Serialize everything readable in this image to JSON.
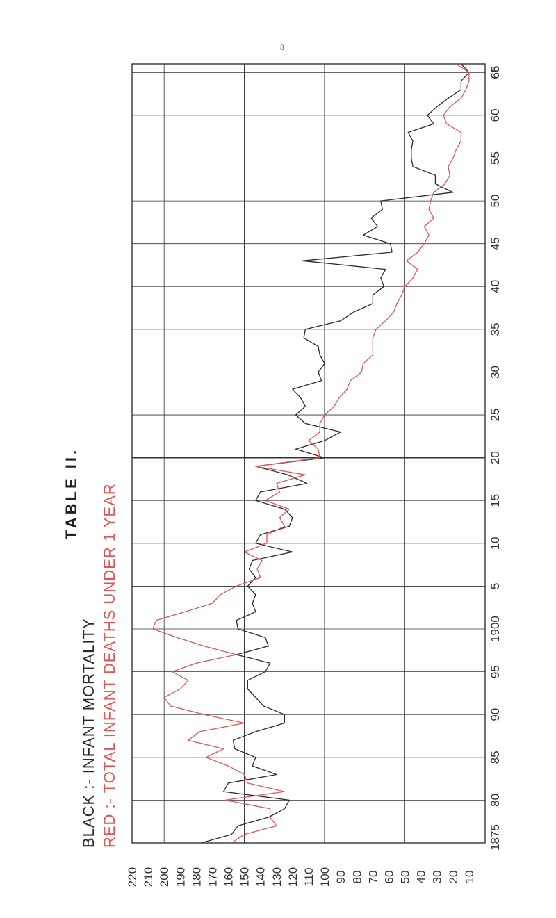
{
  "page_number": "8",
  "chart_data": {
    "type": "line",
    "title": "TABLE II.",
    "legend": [
      {
        "text": "BLACK :- INFANT MORTALITY",
        "color": "#2a2a2a"
      },
      {
        "text": "RED :- TOTAL INFANT DEATHS UNDER 1 YEAR",
        "color": "#e05555"
      }
    ],
    "x_ticks": [
      "1875",
      "80",
      "85",
      "90",
      "95",
      "1900",
      "5",
      "10",
      "15",
      "20",
      "25",
      "30",
      "35",
      "40",
      "45",
      "50",
      "55",
      "60",
      "65",
      "66"
    ],
    "y_ticks": [
      "220",
      "210",
      "200",
      "190",
      "180",
      "170",
      "160",
      "150",
      "140",
      "130",
      "120",
      "110",
      "100",
      "90",
      "80",
      "70",
      "60",
      "50",
      "40",
      "30",
      "20",
      "10"
    ],
    "xlim": [
      1875,
      1966
    ],
    "ylim": [
      0,
      220
    ],
    "grid": true,
    "series": [
      {
        "name": "BLACK",
        "color": "#2a2a2a",
        "points": [
          [
            1875,
            177
          ],
          [
            1876,
            158
          ],
          [
            1877,
            154
          ],
          [
            1878,
            135
          ],
          [
            1879,
            125
          ],
          [
            1880,
            122
          ],
          [
            1881,
            163
          ],
          [
            1882,
            160
          ],
          [
            1883,
            130
          ],
          [
            1884,
            145
          ],
          [
            1885,
            143
          ],
          [
            1886,
            156
          ],
          [
            1887,
            157
          ],
          [
            1888,
            143
          ],
          [
            1889,
            125
          ],
          [
            1890,
            125
          ],
          [
            1891,
            138
          ],
          [
            1892,
            143
          ],
          [
            1893,
            148
          ],
          [
            1894,
            148
          ],
          [
            1895,
            137
          ],
          [
            1896,
            134
          ],
          [
            1897,
            155
          ],
          [
            1898,
            135
          ],
          [
            1899,
            137
          ],
          [
            1900,
            154
          ],
          [
            1901,
            155
          ],
          [
            1902,
            143
          ],
          [
            1903,
            145
          ],
          [
            1904,
            143
          ],
          [
            1905,
            148
          ],
          [
            1906,
            143
          ],
          [
            1907,
            147
          ],
          [
            1908,
            145
          ],
          [
            1909,
            120
          ],
          [
            1910,
            143
          ],
          [
            1911,
            140
          ],
          [
            1912,
            122
          ],
          [
            1913,
            120
          ],
          [
            1914,
            125
          ],
          [
            1915,
            143
          ],
          [
            1916,
            140
          ],
          [
            1917,
            111
          ],
          [
            1918,
            123
          ],
          [
            1919,
            143
          ],
          [
            1920,
            100
          ],
          [
            1921,
            118
          ],
          [
            1922,
            100
          ],
          [
            1923,
            90
          ],
          [
            1924,
            112
          ],
          [
            1925,
            118
          ],
          [
            1926,
            112
          ],
          [
            1927,
            115
          ],
          [
            1928,
            120
          ],
          [
            1929,
            102
          ],
          [
            1930,
            104
          ],
          [
            1931,
            100
          ],
          [
            1932,
            103
          ],
          [
            1933,
            104
          ],
          [
            1934,
            113
          ],
          [
            1935,
            112
          ],
          [
            1936,
            90
          ],
          [
            1937,
            82
          ],
          [
            1938,
            70
          ],
          [
            1939,
            70
          ],
          [
            1940,
            63
          ],
          [
            1941,
            65
          ],
          [
            1942,
            62
          ],
          [
            1943,
            114
          ],
          [
            1944,
            58
          ],
          [
            1945,
            59
          ],
          [
            1946,
            76
          ],
          [
            1947,
            67
          ],
          [
            1948,
            71
          ],
          [
            1949,
            64
          ],
          [
            1950,
            65
          ],
          [
            1951,
            20
          ],
          [
            1952,
            31
          ],
          [
            1953,
            31
          ],
          [
            1954,
            45
          ],
          [
            1955,
            46
          ],
          [
            1956,
            46
          ],
          [
            1957,
            45
          ],
          [
            1958,
            48
          ],
          [
            1959,
            32
          ],
          [
            1960,
            36
          ],
          [
            1961,
            30
          ],
          [
            1962,
            23
          ],
          [
            1963,
            15
          ],
          [
            1964,
            15
          ],
          [
            1965,
            10
          ],
          [
            1966,
            15
          ]
        ]
      },
      {
        "name": "RED",
        "color": "#e05555",
        "points": [
          [
            1875,
            158
          ],
          [
            1876,
            150
          ],
          [
            1877,
            130
          ],
          [
            1878,
            134
          ],
          [
            1879,
            134
          ],
          [
            1880,
            162
          ],
          [
            1881,
            125
          ],
          [
            1882,
            148
          ],
          [
            1883,
            150
          ],
          [
            1884,
            160
          ],
          [
            1885,
            174
          ],
          [
            1886,
            163
          ],
          [
            1887,
            185
          ],
          [
            1888,
            178
          ],
          [
            1889,
            150
          ],
          [
            1890,
            175
          ],
          [
            1891,
            196
          ],
          [
            1892,
            200
          ],
          [
            1893,
            190
          ],
          [
            1894,
            185
          ],
          [
            1895,
            195
          ],
          [
            1896,
            180
          ],
          [
            1897,
            155
          ],
          [
            1898,
            175
          ],
          [
            1899,
            192
          ],
          [
            1900,
            207
          ],
          [
            1901,
            205
          ],
          [
            1902,
            187
          ],
          [
            1903,
            170
          ],
          [
            1904,
            165
          ],
          [
            1905,
            155
          ],
          [
            1906,
            140
          ],
          [
            1907,
            142
          ],
          [
            1908,
            139
          ],
          [
            1909,
            150
          ],
          [
            1910,
            136
          ],
          [
            1911,
            136
          ],
          [
            1912,
            125
          ],
          [
            1913,
            128
          ],
          [
            1914,
            122
          ],
          [
            1915,
            137
          ],
          [
            1916,
            128
          ],
          [
            1917,
            130
          ],
          [
            1918,
            112
          ],
          [
            1919,
            143
          ],
          [
            1920,
            103
          ],
          [
            1921,
            104
          ],
          [
            1922,
            110
          ],
          [
            1923,
            103
          ],
          [
            1924,
            103
          ],
          [
            1925,
            100
          ],
          [
            1926,
            94
          ],
          [
            1927,
            91
          ],
          [
            1928,
            86
          ],
          [
            1929,
            84
          ],
          [
            1930,
            77
          ],
          [
            1931,
            76
          ],
          [
            1932,
            70
          ],
          [
            1933,
            70
          ],
          [
            1934,
            70
          ],
          [
            1935,
            68
          ],
          [
            1936,
            62
          ],
          [
            1937,
            57
          ],
          [
            1938,
            55
          ],
          [
            1939,
            52
          ],
          [
            1940,
            50
          ],
          [
            1941,
            45
          ],
          [
            1942,
            42
          ],
          [
            1943,
            49
          ],
          [
            1944,
            42
          ],
          [
            1945,
            38
          ],
          [
            1946,
            35
          ],
          [
            1947,
            38
          ],
          [
            1948,
            32
          ],
          [
            1949,
            35
          ],
          [
            1950,
            34
          ],
          [
            1951,
            32
          ],
          [
            1952,
            25
          ],
          [
            1953,
            22
          ],
          [
            1954,
            23
          ],
          [
            1955,
            20
          ],
          [
            1956,
            18
          ],
          [
            1957,
            15
          ],
          [
            1958,
            15
          ],
          [
            1959,
            24
          ],
          [
            1960,
            26
          ],
          [
            1961,
            22
          ],
          [
            1962,
            15
          ],
          [
            1963,
            12
          ],
          [
            1964,
            10
          ],
          [
            1965,
            10
          ],
          [
            1966,
            18
          ]
        ]
      }
    ]
  }
}
